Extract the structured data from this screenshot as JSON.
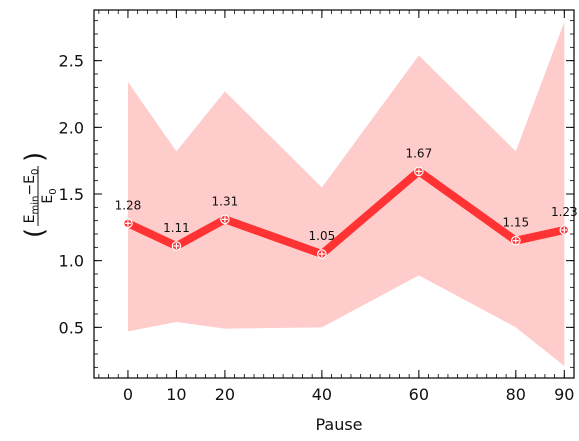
{
  "chart_data": {
    "type": "line",
    "title": "",
    "xlabel": "Pause",
    "ylabel": {
      "numerator_main": "E",
      "numerator_sub": "min",
      "numerator_minus": "−E",
      "numerator_sub2": "0",
      "denominator_main": "E",
      "denominator_sub": "0"
    },
    "x": [
      0,
      10,
      20,
      40,
      60,
      80,
      90
    ],
    "x_ticks": [
      0,
      10,
      20,
      40,
      60,
      80,
      90
    ],
    "y_ticks": [
      0.5,
      1.0,
      1.5,
      2.0,
      2.5
    ],
    "y_tick_labels": [
      "0.5",
      "1.0",
      "1.5",
      "2.0",
      "2.5"
    ],
    "xlim": [
      -7,
      92
    ],
    "ylim": [
      0.12,
      2.88
    ],
    "grid": false,
    "series": [
      {
        "values": [
          1.28,
          1.11,
          1.31,
          1.05,
          1.67,
          1.15,
          1.23
        ],
        "labels": [
          "1.28",
          "1.11",
          "1.31",
          "1.05",
          "1.67",
          "1.15",
          "1.23"
        ],
        "lower": [
          0.47,
          0.54,
          0.49,
          0.5,
          0.89,
          0.5,
          0.21
        ],
        "upper": [
          2.34,
          1.82,
          2.27,
          1.55,
          2.54,
          1.82,
          2.79
        ],
        "line_color": "#ff3333",
        "band_color": "#ffcccc",
        "marker": "circle-plus"
      }
    ]
  }
}
